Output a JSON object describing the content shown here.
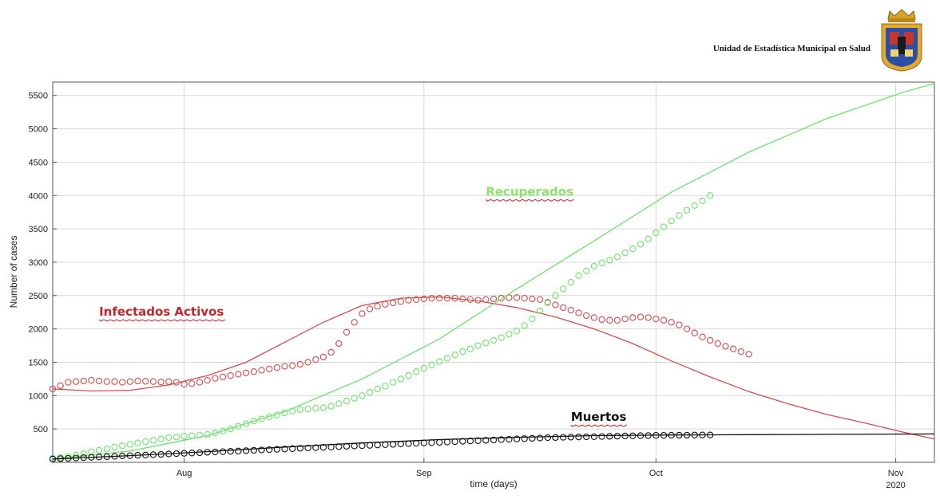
{
  "header": {
    "org_name": "Unidad de Estadística Municipal en Salud",
    "logo_icon": "municipal-crest-icon"
  },
  "chart_data": {
    "type": "scatter",
    "title": "",
    "xlabel": "time (days)",
    "ylabel": "Number of cases",
    "x_type": "date",
    "xlim": [
      "2020-07-15",
      "2020-11-06"
    ],
    "ylim": [
      0,
      5700
    ],
    "x_ticks": [
      {
        "date": "2020-08-01",
        "label": "Aug"
      },
      {
        "date": "2020-09-01",
        "label": "Sep"
      },
      {
        "date": "2020-10-01",
        "label": "Oct"
      },
      {
        "date": "2020-11-01",
        "label": "Nov"
      }
    ],
    "x_year_label": "2020",
    "y_ticks": [
      500,
      1000,
      1500,
      2000,
      2500,
      3000,
      3500,
      4000,
      4500,
      5000,
      5500
    ],
    "grid": true,
    "annotations": [
      {
        "text": "Infectados Activos",
        "color": "#c0262b",
        "date": "2020-07-21",
        "value": 2200
      },
      {
        "text": "Recuperados",
        "color": "#8be36a",
        "date": "2020-09-09",
        "value": 4000
      },
      {
        "text": "Muertos",
        "color": "#111111",
        "date": "2020-09-20",
        "value": 620
      }
    ],
    "series": [
      {
        "key": "infectados",
        "color": "#d24c4c",
        "observed": {
          "start": "2020-07-15",
          "values": [
            1100,
            1150,
            1200,
            1210,
            1220,
            1230,
            1220,
            1210,
            1210,
            1200,
            1210,
            1220,
            1215,
            1210,
            1205,
            1210,
            1200,
            1170,
            1180,
            1200,
            1230,
            1260,
            1280,
            1300,
            1320,
            1340,
            1360,
            1380,
            1400,
            1420,
            1440,
            1450,
            1470,
            1500,
            1540,
            1580,
            1650,
            1780,
            1950,
            2100,
            2230,
            2300,
            2340,
            2370,
            2390,
            2410,
            2430,
            2440,
            2450,
            2460,
            2460,
            2460,
            2460,
            2450,
            2440,
            2430,
            2440,
            2450,
            2460,
            2470,
            2470,
            2460,
            2450,
            2440,
            2400,
            2360,
            2320,
            2280,
            2240,
            2200,
            2170,
            2140,
            2130,
            2130,
            2150,
            2170,
            2180,
            2170,
            2150,
            2130,
            2100,
            2060,
            2000,
            1940,
            1880,
            1830,
            1780,
            1740,
            1700,
            1660,
            1620
          ]
        },
        "fitted": [
          {
            "date": "2020-07-15",
            "value": 1100
          },
          {
            "date": "2020-07-20",
            "value": 1070
          },
          {
            "date": "2020-07-25",
            "value": 1080
          },
          {
            "date": "2020-07-30",
            "value": 1160
          },
          {
            "date": "2020-08-04",
            "value": 1300
          },
          {
            "date": "2020-08-09",
            "value": 1500
          },
          {
            "date": "2020-08-14",
            "value": 1800
          },
          {
            "date": "2020-08-19",
            "value": 2100
          },
          {
            "date": "2020-08-24",
            "value": 2350
          },
          {
            "date": "2020-08-29",
            "value": 2460
          },
          {
            "date": "2020-09-03",
            "value": 2480
          },
          {
            "date": "2020-09-08",
            "value": 2420
          },
          {
            "date": "2020-09-13",
            "value": 2320
          },
          {
            "date": "2020-09-18",
            "value": 2180
          },
          {
            "date": "2020-09-23",
            "value": 2000
          },
          {
            "date": "2020-09-28",
            "value": 1780
          },
          {
            "date": "2020-10-03",
            "value": 1520
          },
          {
            "date": "2020-10-08",
            "value": 1280
          },
          {
            "date": "2020-10-13",
            "value": 1060
          },
          {
            "date": "2020-10-18",
            "value": 880
          },
          {
            "date": "2020-10-23",
            "value": 720
          },
          {
            "date": "2020-10-28",
            "value": 590
          },
          {
            "date": "2020-11-02",
            "value": 450
          },
          {
            "date": "2020-11-06",
            "value": 350
          }
        ]
      },
      {
        "key": "recuperados",
        "color": "#6fe06f",
        "observed": {
          "start": "2020-07-15",
          "values": [
            60,
            70,
            90,
            110,
            130,
            160,
            180,
            200,
            230,
            250,
            270,
            290,
            310,
            330,
            350,
            370,
            380,
            390,
            400,
            410,
            420,
            440,
            470,
            500,
            540,
            580,
            620,
            650,
            680,
            710,
            740,
            770,
            790,
            800,
            810,
            820,
            840,
            880,
            920,
            960,
            1000,
            1050,
            1100,
            1140,
            1200,
            1250,
            1300,
            1360,
            1410,
            1460,
            1510,
            1560,
            1610,
            1660,
            1700,
            1750,
            1790,
            1830,
            1870,
            1920,
            1970,
            2050,
            2150,
            2270,
            2390,
            2500,
            2600,
            2700,
            2800,
            2870,
            2940,
            2990,
            3030,
            3080,
            3140,
            3200,
            3270,
            3350,
            3440,
            3530,
            3620,
            3700,
            3780,
            3850,
            3920,
            4000
          ]
        },
        "fitted": [
          {
            "date": "2020-07-15",
            "value": 50
          },
          {
            "date": "2020-07-25",
            "value": 170
          },
          {
            "date": "2020-08-04",
            "value": 400
          },
          {
            "date": "2020-08-14",
            "value": 760
          },
          {
            "date": "2020-08-24",
            "value": 1250
          },
          {
            "date": "2020-09-03",
            "value": 1850
          },
          {
            "date": "2020-09-13",
            "value": 2600
          },
          {
            "date": "2020-09-23",
            "value": 3320
          },
          {
            "date": "2020-10-03",
            "value": 4050
          },
          {
            "date": "2020-10-13",
            "value": 4650
          },
          {
            "date": "2020-10-23",
            "value": 5150
          },
          {
            "date": "2020-11-02",
            "value": 5550
          },
          {
            "date": "2020-11-06",
            "value": 5680
          }
        ]
      },
      {
        "key": "muertos",
        "color": "#111111",
        "observed": {
          "start": "2020-07-15",
          "values": [
            50,
            55,
            60,
            65,
            70,
            75,
            80,
            85,
            90,
            95,
            100,
            105,
            110,
            115,
            120,
            125,
            130,
            135,
            140,
            145,
            150,
            155,
            160,
            165,
            170,
            175,
            180,
            185,
            190,
            195,
            200,
            205,
            210,
            215,
            220,
            225,
            230,
            235,
            240,
            245,
            250,
            255,
            260,
            265,
            270,
            275,
            280,
            285,
            290,
            295,
            300,
            305,
            310,
            315,
            320,
            325,
            330,
            335,
            340,
            345,
            350,
            355,
            360,
            365,
            370,
            372,
            375,
            378,
            380,
            382,
            385,
            387,
            390,
            392,
            395,
            397,
            400,
            402,
            404,
            405,
            406,
            407,
            408,
            409,
            410,
            410
          ]
        },
        "fitted": [
          {
            "date": "2020-07-15",
            "value": 50
          },
          {
            "date": "2020-07-25",
            "value": 100
          },
          {
            "date": "2020-08-04",
            "value": 160
          },
          {
            "date": "2020-08-14",
            "value": 230
          },
          {
            "date": "2020-08-24",
            "value": 290
          },
          {
            "date": "2020-09-03",
            "value": 340
          },
          {
            "date": "2020-09-13",
            "value": 375
          },
          {
            "date": "2020-09-23",
            "value": 400
          },
          {
            "date": "2020-10-03",
            "value": 410
          },
          {
            "date": "2020-10-13",
            "value": 415
          },
          {
            "date": "2020-10-23",
            "value": 420
          },
          {
            "date": "2020-11-06",
            "value": 425
          }
        ]
      }
    ]
  }
}
